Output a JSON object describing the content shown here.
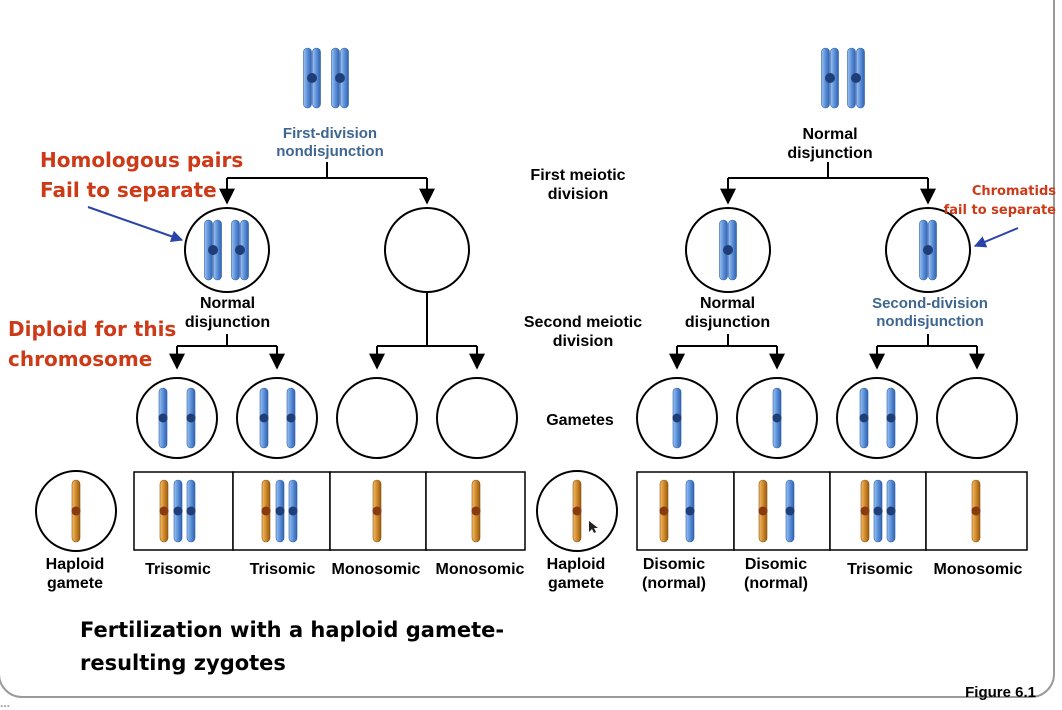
{
  "left_panel": {
    "top_label": "First-division nondisjunction",
    "second_label": "Normal disjunction"
  },
  "right_panel": {
    "top_label": "Normal disjunction",
    "left_second_label": "Normal disjunction",
    "right_second_label": "Second-division nondisjunction"
  },
  "center_labels": {
    "first_meiotic": "First meiotic division",
    "second_meiotic": "Second meiotic division",
    "gametes": "Gametes"
  },
  "annotations": {
    "homologous": [
      "Homologous pairs",
      "Fail to separate"
    ],
    "diploid": [
      "Diploid for this",
      "chromosome"
    ],
    "chromatids": [
      "Chromatids",
      "fail to separate"
    ]
  },
  "zygote_labels": {
    "haploid_gamete": [
      "Haploid",
      "gamete"
    ],
    "left": [
      "Trisomic",
      "Trisomic",
      "Monosomic",
      "Monosomic"
    ],
    "right": [
      [
        "Disomic",
        "(normal)"
      ],
      [
        "Disomic",
        "(normal)"
      ],
      [
        "Trisomic"
      ],
      [
        "Monosomic"
      ]
    ]
  },
  "footer": {
    "caption_lines": [
      "Fertilization with a haploid gamete-",
      "resulting zygotes"
    ],
    "figure": "Figure 6.1",
    "corner_mark": "..."
  },
  "colors": {
    "chromosome_blue": "#5b8fd6",
    "chromosome_orange": "#d08a2a",
    "label_blue": "#3f6691",
    "annotation_red": "#cc3a18",
    "arrow_blue": "#2a43a8"
  }
}
